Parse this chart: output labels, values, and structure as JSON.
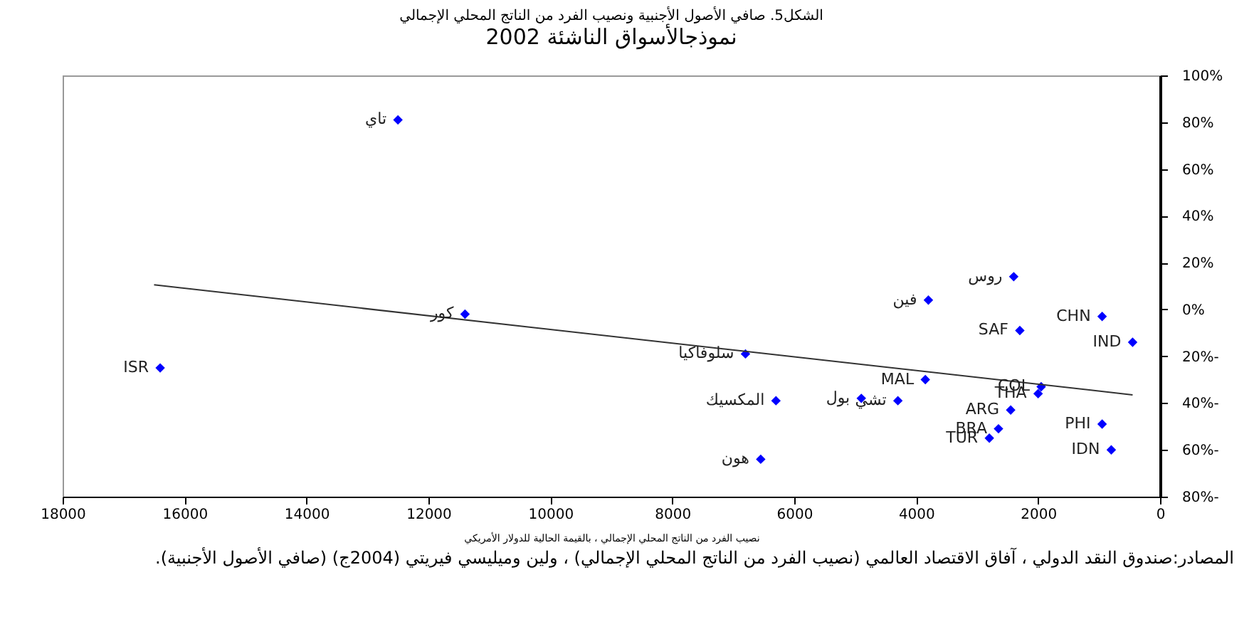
{
  "chart_data": {
    "type": "scatter",
    "title": "الشكل5. صافي الأصول الأجنبية ونصيب الفرد من الناتج المحلي الإجمالي",
    "subtitle": "نموذجالأسواق الناشئة 2002",
    "xlabel": "نصيب الفرد من الناتج المحلي الإجمالي ، بالقيمة الحالية للدولار الأمريكي",
    "xlim": [
      18000,
      0
    ],
    "xticks": [
      18000,
      16000,
      14000,
      12000,
      10000,
      8000,
      6000,
      4000,
      2000,
      0
    ],
    "ylim": [
      -80,
      100
    ],
    "yticks": [
      {
        "value": 100,
        "label": "100%"
      },
      {
        "value": 80,
        "label": "80%"
      },
      {
        "value": 60,
        "label": "60%"
      },
      {
        "value": 40,
        "label": "40%"
      },
      {
        "value": 20,
        "label": "20%"
      },
      {
        "value": 0,
        "label": "0%"
      },
      {
        "value": -20,
        "label": "20%-"
      },
      {
        "value": -40,
        "label": "40%-"
      },
      {
        "value": -60,
        "label": "60%-"
      },
      {
        "value": -80,
        "label": "80%-"
      }
    ],
    "grid": false,
    "series": [
      {
        "type": "scatter",
        "marker": "diamond",
        "color": "#0000ff",
        "x": [
          12500,
          11400,
          16400,
          2400,
          3800,
          950,
          2300,
          450,
          6800,
          3850,
          1950,
          2000,
          6300,
          4900,
          4300,
          2450,
          950,
          2650,
          2800,
          800,
          6550
        ],
        "values": [
          81,
          -2,
          -25,
          14,
          4,
          -3,
          -9,
          -14,
          -19,
          -30,
          -33,
          -36,
          -39,
          -38,
          -39,
          -43,
          -49,
          -51,
          -55,
          -60,
          -64
        ]
      },
      {
        "type": "line",
        "color": "#333333",
        "x": [
          16500,
          450
        ],
        "values": [
          10.5,
          -36.5
        ]
      }
    ],
    "annotations": [
      {
        "text": "تاي",
        "x": 12500,
        "y": 81
      },
      {
        "text": "كور",
        "x": 11400,
        "y": -2
      },
      {
        "text": "ISR",
        "x": 16400,
        "y": -25
      },
      {
        "text": "روس",
        "x": 2400,
        "y": 14
      },
      {
        "text": "فين",
        "x": 3800,
        "y": 4
      },
      {
        "text": "CHN",
        "x": 950,
        "y": -3
      },
      {
        "text": "SAF",
        "x": 2300,
        "y": -9
      },
      {
        "text": "IND",
        "x": 450,
        "y": -14
      },
      {
        "text": "سلوفاكيا",
        "x": 6800,
        "y": -19
      },
      {
        "text": "MAL",
        "x": 3850,
        "y": -30
      },
      {
        "text": "COL",
        "x": 1950,
        "y": -33
      },
      {
        "text": "THA",
        "x": 2000,
        "y": -36
      },
      {
        "text": "المكسيك",
        "x": 6300,
        "y": -39
      },
      {
        "text": "بول",
        "x": 4900,
        "y": -38
      },
      {
        "text": "تشي",
        "x": 4300,
        "y": -39
      },
      {
        "text": "ARG",
        "x": 2450,
        "y": -43
      },
      {
        "text": "PHI",
        "x": 950,
        "y": -49
      },
      {
        "text": "BRA",
        "x": 2650,
        "y": -51
      },
      {
        "text": "TUR",
        "x": 2800,
        "y": -55
      },
      {
        "text": "IDN",
        "x": 800,
        "y": -60
      },
      {
        "text": "هون",
        "x": 6550,
        "y": -64
      },
      "المصادر:صندوق النقد الدولي ، آفاق الاقتصاد العالمي (نصيب الفرد من الناتج المحلي الإجمالي) ، ولين وميليسي فيريتي (2004ج) (صافي الأصول الأجنبية)."
    ]
  }
}
